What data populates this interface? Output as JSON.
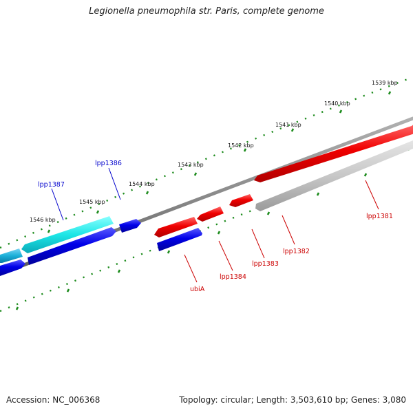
{
  "title": "Legionella pneumophila str. Paris, complete genome",
  "footer": {
    "accession": "Accession: NC_006368",
    "topology": "Topology: circular; Length: 3,503,610 bp; Genes: 3,080"
  },
  "colors": {
    "background": "#ffffff",
    "tick_mark": "#1e8c1e",
    "backbone": "#808080",
    "forward_gene": "#e00000",
    "forward_gray": "#bdbdbd",
    "reverse_gene": "#0000e0",
    "cyan_gene": "#18e0e0",
    "light_blue_gene": "#1ab0d8"
  },
  "scale_labels": [
    "1539 kbp",
    "1540 kbp",
    "1541 kbp",
    "1542 kbp",
    "1543 kbp",
    "1544 kbp",
    "1545 kbp",
    "1546 kbp"
  ],
  "gene_labels": {
    "lpp1381": "lpp1381",
    "lpp1382": "lpp1382",
    "lpp1383": "lpp1383",
    "lpp1384": "lpp1384",
    "ubiA": "ubiA",
    "lpp1386": "lpp1386",
    "lpp1387": "lpp1387"
  }
}
